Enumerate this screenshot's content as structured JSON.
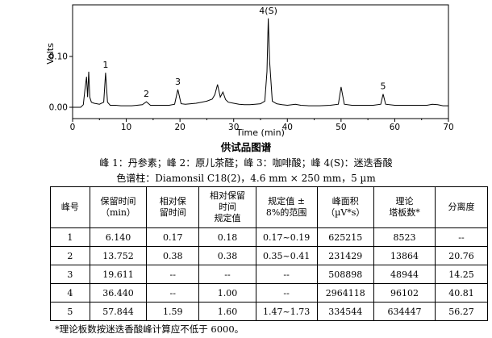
{
  "chart_data": {
    "type": "line",
    "xlabel": "Time (min)",
    "ylabel": "Volts",
    "xlim": [
      0,
      70
    ],
    "ylim": [
      0,
      0.2
    ],
    "x_ticks": [
      "0",
      "10",
      "20",
      "30",
      "40",
      "50",
      "60",
      "70"
    ],
    "y_ticks": [
      "0.00",
      "0.10"
    ],
    "peak_labels": [
      "1",
      "2",
      "3",
      "4(S)",
      "5"
    ],
    "series": [
      {
        "x": [
          0,
          1.5,
          2.0,
          2.3,
          2.6,
          2.8,
          3.0,
          3.2,
          3.5,
          4.0,
          5.0,
          5.8,
          6.14,
          6.5,
          7.0,
          8.0,
          9.0,
          10.0,
          11.0,
          12.0,
          13.0,
          13.75,
          14.5,
          15.0,
          16.0,
          17.0,
          18.0,
          19.0,
          19.61,
          20.2,
          21.0,
          22.0,
          23.0,
          24.0,
          25.0,
          26.0,
          26.5,
          27.0,
          27.5,
          28.0,
          28.5,
          29.0,
          30.0,
          31.0,
          32.0,
          33.0,
          34.0,
          35.0,
          35.8,
          36.2,
          36.44,
          36.7,
          37.2,
          38.0,
          39.0,
          40.0,
          41.5,
          42.5,
          44.0,
          46.0,
          48.0,
          49.5,
          50.0,
          50.6,
          52.0,
          54.0,
          56.0,
          57.4,
          57.84,
          58.3,
          60.0,
          62.0,
          64.0,
          66.0,
          67.0,
          68.0,
          69.0,
          70.0
        ],
        "y": [
          0.0,
          0.0,
          0.005,
          0.035,
          0.06,
          0.02,
          0.07,
          0.02,
          0.01,
          0.008,
          0.006,
          0.01,
          0.068,
          0.01,
          0.004,
          0.004,
          0.003,
          0.003,
          0.003,
          0.004,
          0.005,
          0.011,
          0.004,
          0.004,
          0.004,
          0.004,
          0.004,
          0.006,
          0.035,
          0.007,
          0.006,
          0.007,
          0.008,
          0.01,
          0.012,
          0.016,
          0.025,
          0.045,
          0.02,
          0.03,
          0.015,
          0.01,
          0.008,
          0.006,
          0.005,
          0.005,
          0.006,
          0.007,
          0.012,
          0.07,
          0.175,
          0.09,
          0.012,
          0.007,
          0.005,
          0.004,
          0.006,
          0.004,
          0.003,
          0.003,
          0.004,
          0.006,
          0.04,
          0.006,
          0.004,
          0.004,
          0.004,
          0.006,
          0.026,
          0.006,
          0.004,
          0.004,
          0.004,
          0.004,
          0.006,
          0.005,
          0.003,
          0.003
        ]
      }
    ]
  },
  "figure": {
    "title": "供试品图谱",
    "legend_peaks": "峰 1：丹参素；峰 2：原儿茶醛；峰 3：咖啡酸；峰 4(S)：迷迭香酸",
    "legend_column": "色谱柱：Diamonsil C18(2)，4.6 mm × 250 mm，5 µm"
  },
  "table": {
    "headers": [
      "峰号",
      "保留时间\n（min）",
      "相对保\n留时间",
      "相对保留\n时间\n规定值",
      "规定值 ±\n8%的范围",
      "峰面积\n（µV*s）",
      "理论\n塔板数*",
      "分离度"
    ],
    "rows": [
      [
        "1",
        "6.140",
        "0.17",
        "0.18",
        "0.17~0.19",
        "625215",
        "8523",
        "--"
      ],
      [
        "2",
        "13.752",
        "0.38",
        "0.38",
        "0.35~0.41",
        "231429",
        "13864",
        "20.76"
      ],
      [
        "3",
        "19.611",
        "--",
        "--",
        "--",
        "508898",
        "48944",
        "14.25"
      ],
      [
        "4",
        "36.440",
        "--",
        "1.00",
        "--",
        "2964118",
        "96102",
        "40.81"
      ],
      [
        "5",
        "57.844",
        "1.59",
        "1.60",
        "1.47~1.73",
        "334544",
        "634447",
        "56.27"
      ]
    ]
  },
  "footnote": "*理论板数按迷迭香酸峰计算应不低于 6000。"
}
